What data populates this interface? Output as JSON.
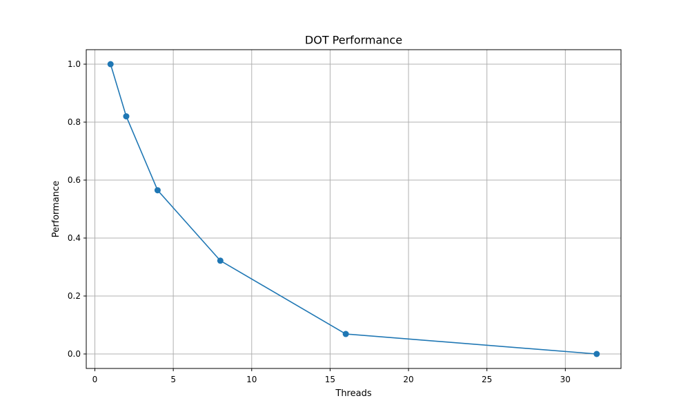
{
  "chart_data": {
    "type": "line",
    "title": "DOT Performance",
    "xlabel": "Threads",
    "ylabel": "Performance",
    "xlim": [
      -0.55,
      33.55
    ],
    "ylim": [
      -0.05,
      1.05
    ],
    "xticks": [
      0,
      5,
      10,
      15,
      20,
      25,
      30
    ],
    "yticks": [
      0.0,
      0.2,
      0.4,
      0.6,
      0.8,
      1.0
    ],
    "xtick_labels": [
      "0",
      "5",
      "10",
      "15",
      "20",
      "25",
      "30"
    ],
    "ytick_labels": [
      "0.0",
      "0.2",
      "0.4",
      "0.6",
      "0.8",
      "1.0"
    ],
    "grid": true,
    "series": [
      {
        "x": [
          1,
          2,
          4,
          8,
          16,
          32
        ],
        "y": [
          1.0,
          0.82,
          0.565,
          0.322,
          0.069,
          0.0
        ],
        "color": "#1f77b4",
        "marker": "circle"
      }
    ]
  }
}
